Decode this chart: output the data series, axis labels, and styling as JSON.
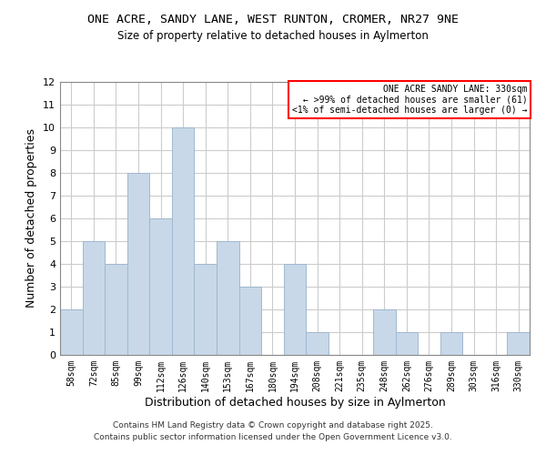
{
  "title": "ONE ACRE, SANDY LANE, WEST RUNTON, CROMER, NR27 9NE",
  "subtitle": "Size of property relative to detached houses in Aylmerton",
  "xlabel": "Distribution of detached houses by size in Aylmerton",
  "ylabel": "Number of detached properties",
  "bin_labels": [
    "58sqm",
    "72sqm",
    "85sqm",
    "99sqm",
    "112sqm",
    "126sqm",
    "140sqm",
    "153sqm",
    "167sqm",
    "180sqm",
    "194sqm",
    "208sqm",
    "221sqm",
    "235sqm",
    "248sqm",
    "262sqm",
    "276sqm",
    "289sqm",
    "303sqm",
    "316sqm",
    "330sqm"
  ],
  "counts": [
    2,
    5,
    4,
    8,
    6,
    10,
    4,
    5,
    3,
    0,
    4,
    1,
    0,
    0,
    2,
    1,
    0,
    1,
    0,
    0,
    1
  ],
  "bar_color": "#c8d8e8",
  "bar_edge_color": "#a0b8d0",
  "legend_box_color": "#ff0000",
  "legend_title": "ONE ACRE SANDY LANE: 330sqm",
  "legend_line1": "← >99% of detached houses are smaller (61)",
  "legend_line2": "<1% of semi-detached houses are larger (0) →",
  "ylim": [
    0,
    12
  ],
  "yticks": [
    0,
    1,
    2,
    3,
    4,
    5,
    6,
    7,
    8,
    9,
    10,
    11,
    12
  ],
  "footer1": "Contains HM Land Registry data © Crown copyright and database right 2025.",
  "footer2": "Contains public sector information licensed under the Open Government Licence v3.0.",
  "background_color": "#ffffff",
  "grid_color": "#cccccc"
}
